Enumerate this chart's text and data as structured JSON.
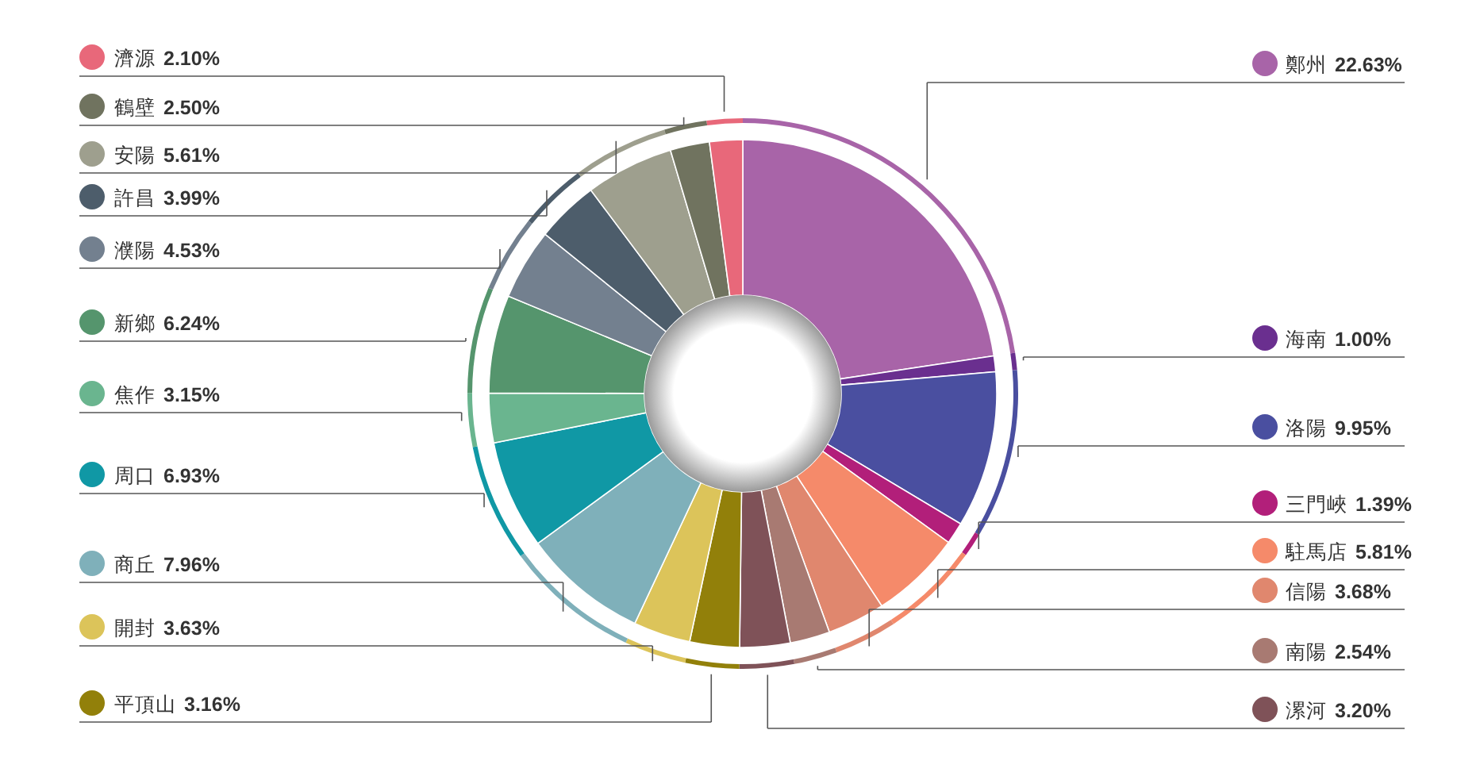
{
  "chart_data": {
    "type": "donut",
    "legend": "left",
    "categories": [
      "鄭州",
      "海南",
      "洛陽",
      "三門峽",
      "駐馬店",
      "信陽",
      "南陽",
      "漯河",
      "平頂山",
      "開封",
      "商丘",
      "周口",
      "焦作",
      "新鄉",
      "濮陽",
      "許昌",
      "安陽",
      "鶴壁",
      "濟源"
    ],
    "values": [
      22.63,
      1.0,
      9.95,
      1.39,
      5.81,
      3.68,
      2.54,
      3.2,
      3.16,
      3.63,
      7.96,
      6.93,
      3.15,
      6.24,
      4.53,
      3.99,
      5.61,
      2.5,
      2.1
    ],
    "value_labels": [
      "22.63%",
      "1.00%",
      "9.95%",
      "1.39%",
      "5.81%",
      "3.68%",
      "2.54%",
      "3.20%",
      "3.16%",
      "3.63%",
      "7.96%",
      "6.93%",
      "3.15%",
      "6.24%",
      "4.53%",
      "3.99%",
      "5.61%",
      "2.50%",
      "2.10%"
    ],
    "colors": [
      "#a864a8",
      "#6a2f8f",
      "#4a4fa0",
      "#b21f7a",
      "#f58a6a",
      "#e0876e",
      "#a87a72",
      "#7f5258",
      "#92800a",
      "#dcc45a",
      "#7fb0ba",
      "#1098a5",
      "#6ab58f",
      "#55956d",
      "#73808f",
      "#4d5d6b",
      "#9e9f8e",
      "#70735f",
      "#e8687a"
    ]
  }
}
